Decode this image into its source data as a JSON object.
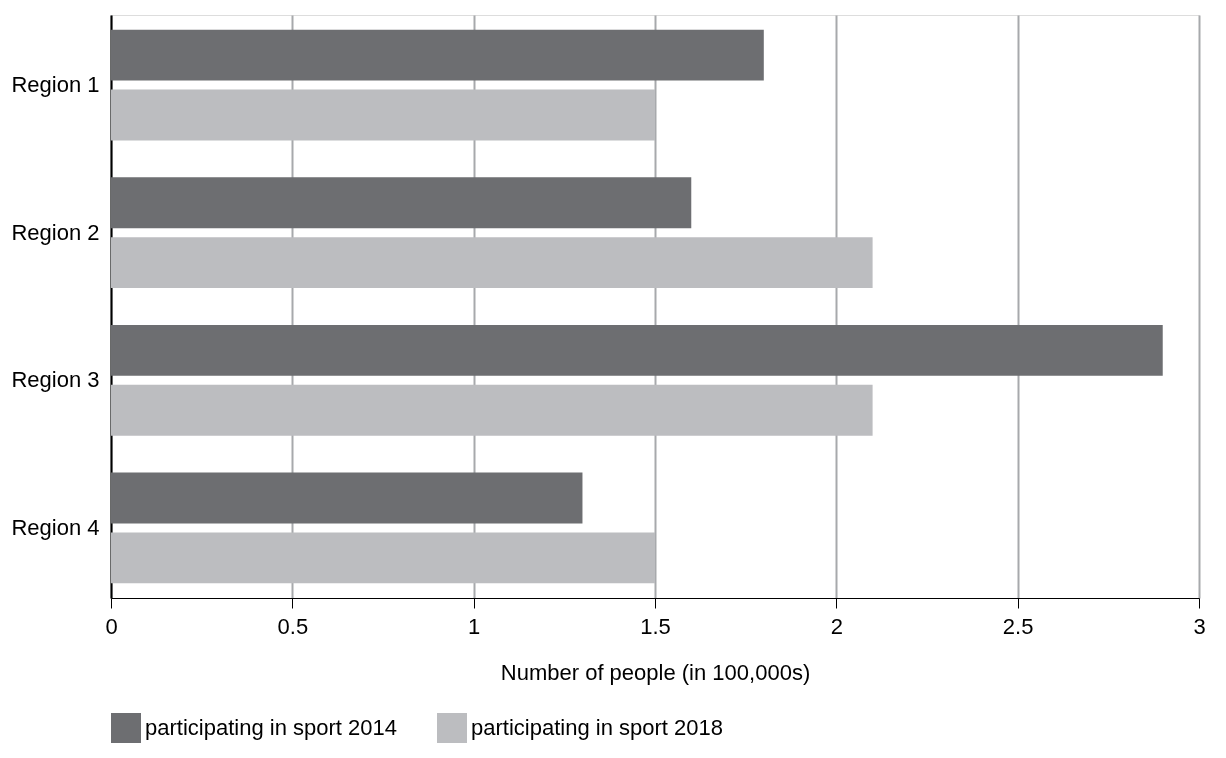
{
  "chart_data": {
    "type": "bar",
    "orientation": "horizontal",
    "xlabel": "Number of people (in 100,000s)",
    "categories": [
      "Region 1",
      "Region 2",
      "Region 3",
      "Region 4"
    ],
    "series": [
      {
        "name": "participating in sport 2014",
        "color": "#6d6e71",
        "values": [
          1.8,
          1.6,
          2.9,
          1.3
        ]
      },
      {
        "name": "participating in sport 2018",
        "color": "#bcbdc0",
        "values": [
          1.5,
          2.1,
          2.1,
          1.5
        ]
      }
    ],
    "xlim": [
      0,
      3
    ],
    "xticks": [
      0,
      0.5,
      1,
      1.5,
      2,
      2.5,
      3
    ],
    "grid": "x",
    "legend": "bottom"
  }
}
